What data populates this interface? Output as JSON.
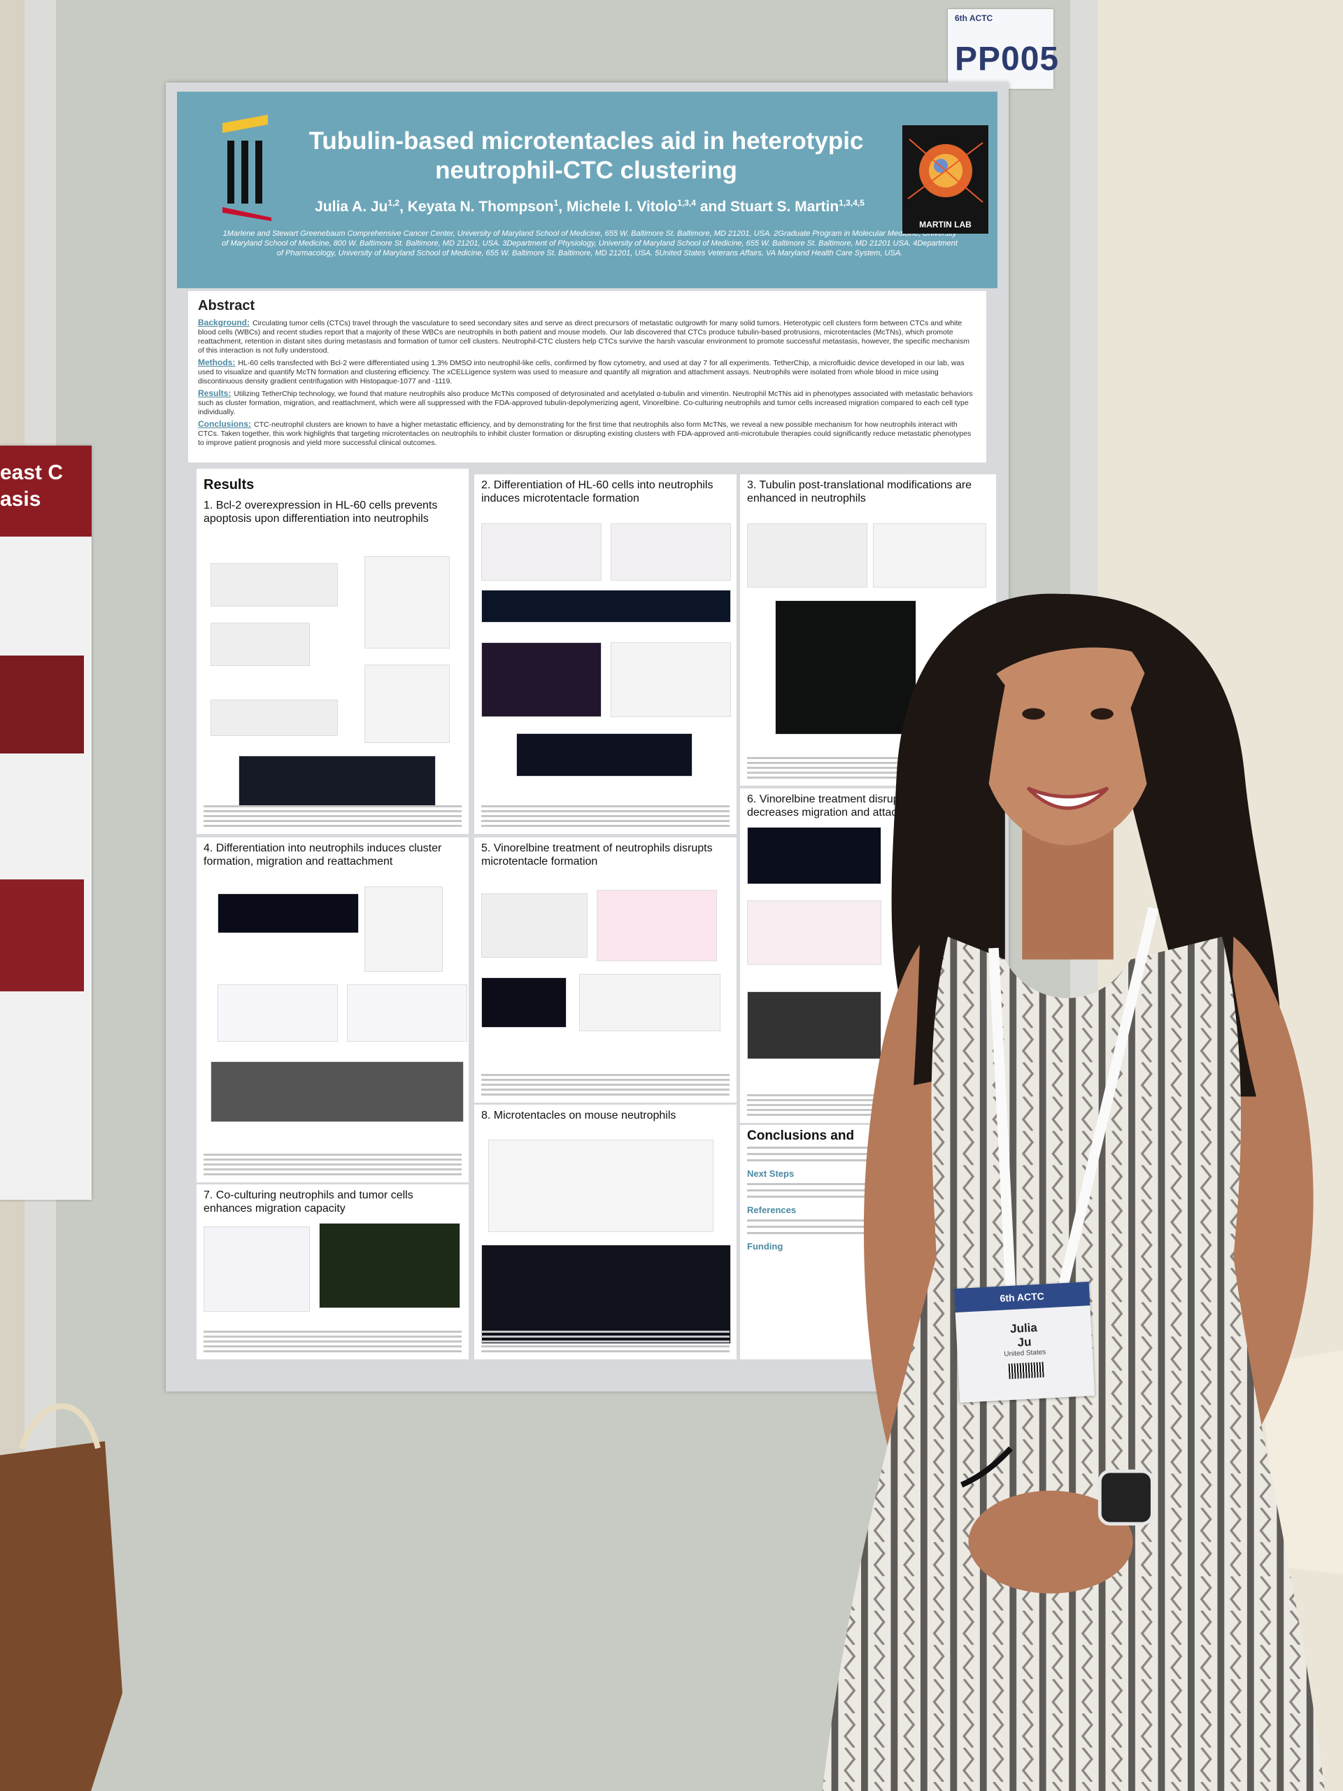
{
  "booth_label": {
    "event": "6th ACTC",
    "code": "PP005"
  },
  "left_poster": {
    "title_fragments": [
      "east C",
      "asis"
    ]
  },
  "poster": {
    "title": "Tubulin-based microtentacles aid in heterotypic neutrophil-CTC clustering",
    "authors": [
      {
        "text": "Julia A. Ju",
        "sup": "1,2"
      },
      {
        "text": ", Keyata N. Thompson",
        "sup": "1"
      },
      {
        "text": ", Michele I. Vitolo",
        "sup": "1,3,4"
      },
      {
        "text": " and Stuart S. Martin",
        "sup": "1,3,4,5"
      }
    ],
    "affiliations": "1Marlene and Stewart Greenebaum Comprehensive Cancer Center, University of Maryland School of Medicine, 655 W. Baltimore St. Baltimore, MD 21201, USA. 2Graduate Program in Molecular Medicine, University of Maryland School of Medicine, 800 W. Baltimore St. Baltimore, MD 21201, USA. 3Department of Physiology, University of Maryland School of Medicine, 655 W. Baltimore St. Baltimore, MD 21201 USA. 4Department of Pharmacology, University of Maryland School of Medicine, 655 W. Baltimore St. Baltimore, MD 21201, USA. 5United States Veterans Affairs, VA Maryland Health Care System, USA.",
    "lab_logo": "MARTIN LAB",
    "abstract": {
      "heading": "Abstract",
      "paragraphs": [
        {
          "label": "Background:",
          "text": "Circulating tumor cells (CTCs) travel through the vasculature to seed secondary sites and serve as direct precursors of metastatic outgrowth for many solid tumors. Heterotypic cell clusters form between CTCs and white blood cells (WBCs) and recent studies report that a majority of these WBCs are neutrophils in both patient and mouse models. Our lab discovered that CTCs produce tubulin-based protrusions, microtentacles (McTNs), which promote reattachment, retention in distant sites during metastasis and formation of tumor cell clusters. Neutrophil-CTC clusters help CTCs survive the harsh vascular environment to promote successful metastasis, however, the specific mechanism of this interaction is not fully understood."
        },
        {
          "label": "Methods:",
          "text": "HL-60 cells transfected with Bcl-2 were differentiated using 1.3% DMSO into neutrophil-like cells, confirmed by flow cytometry, and used at day 7 for all experiments. TetherChip, a microfluidic device developed in our lab, was used to visualize and quantify McTN formation and clustering efficiency. The xCELLigence system was used to measure and quantify all migration and attachment assays. Neutrophils were isolated from whole blood in mice using discontinuous density gradient centrifugation with Histopaque-1077 and -1119."
        },
        {
          "label": "Results:",
          "text": "Utilizing TetherChip technology, we found that mature neutrophils also produce McTNs composed of detyrosinated and acetylated α-tubulin and vimentin. Neutrophil McTNs aid in phenotypes associated with metastatic behaviors such as cluster formation, migration, and reattachment, which were all suppressed with the FDA-approved tubulin-depolymerizing agent, Vinorelbine. Co-culturing neutrophils and tumor cells increased migration compared to each cell type individually."
        },
        {
          "label": "Conclusions:",
          "text": "CTC-neutrophil clusters are known to have a higher metastatic efficiency, and by demonstrating for the first time that neutrophils also form McTNs, we reveal a new possible mechanism for how neutrophils interact with CTCs. Taken together, this work highlights that targeting microtentacles on neutrophils to inhibit cluster formation or disrupting existing clusters with FDA-approved anti-microtubule therapies could significantly reduce metastatic phenotypes to improve patient prognosis and yield more successful clinical outcomes."
        }
      ]
    },
    "results": {
      "heading": "Results",
      "sections": [
        "1. Bcl-2 overexpression in HL-60 cells prevents apoptosis upon differentiation into neutrophils",
        "2. Differentiation of HL-60 cells into neutrophils induces microtentacle formation",
        "3. Tubulin post-translational modifications are enhanced in neutrophils",
        "4. Differentiation into neutrophils induces cluster formation, migration and reattachment",
        "5. Vinorelbine treatment of neutrophils disrupts microtentacle formation",
        "6. Vinorelbine treatment disrupts cluster and decreases migration and attachment",
        "7. Co-culturing neutrophils and tumor cells enhances migration capacity",
        "8. Microtentacles on mouse neutrophils"
      ]
    },
    "conclusions": {
      "heading": "Conclusions and",
      "subheadings": [
        "Next Steps",
        "References",
        "Funding"
      ]
    }
  },
  "badge": {
    "event": "6th ACTC",
    "first_name": "Julia",
    "last_name": "Ju",
    "country": "United States"
  }
}
